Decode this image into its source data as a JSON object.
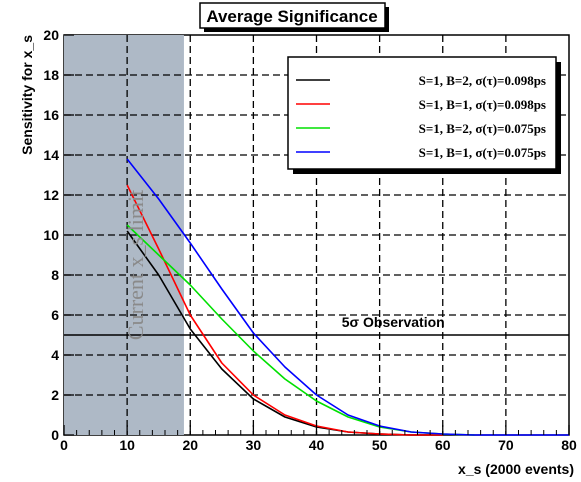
{
  "chart_data": {
    "type": "line",
    "title": "Average Significance",
    "xlabel": "x_s (2000 events)",
    "ylabel": "Sensitivity for x_s",
    "xlim": [
      0,
      80
    ],
    "ylim": [
      0,
      20
    ],
    "x_ticks": [
      "0",
      "10",
      "20",
      "30",
      "40",
      "50",
      "60",
      "70",
      "80"
    ],
    "y_ticks": [
      "0",
      "2",
      "4",
      "6",
      "8",
      "10",
      "12",
      "14",
      "16",
      "18",
      "20"
    ],
    "grid": true,
    "legend_position": "top-right",
    "shaded_region": {
      "label": "Current x_s limit",
      "x_range": [
        0,
        19
      ],
      "color": "#aeb9c6"
    },
    "reference_line": {
      "y": 5,
      "label": "5σ Observation"
    },
    "series": [
      {
        "name": "S=1, B=2, σ(τ)=0.098ps",
        "color": "#000000",
        "x": [
          10,
          15,
          20,
          25,
          30,
          35,
          40,
          45,
          50,
          55,
          60
        ],
        "y": [
          10.2,
          8.0,
          5.3,
          3.3,
          1.8,
          0.9,
          0.4,
          0.15,
          0.05,
          0.0,
          0.0
        ]
      },
      {
        "name": "S=1, B=1, σ(τ)=0.098ps",
        "color": "#ff0000",
        "x": [
          10,
          15,
          20,
          25,
          30,
          35,
          40,
          45,
          50,
          55,
          60
        ],
        "y": [
          12.5,
          9.3,
          6.0,
          3.6,
          2.0,
          1.0,
          0.45,
          0.15,
          0.05,
          0.0,
          0.0
        ]
      },
      {
        "name": "S=1, B=2, σ(τ)=0.075ps",
        "color": "#00e000",
        "x": [
          10,
          15,
          20,
          25,
          30,
          35,
          40,
          45,
          50,
          55,
          60,
          65
        ],
        "y": [
          10.5,
          9.0,
          7.5,
          5.8,
          4.2,
          2.8,
          1.7,
          0.9,
          0.4,
          0.15,
          0.05,
          0.0
        ]
      },
      {
        "name": "S=1, B=1, σ(τ)=0.075ps",
        "color": "#0000ff",
        "x": [
          10,
          15,
          20,
          25,
          30,
          35,
          40,
          45,
          50,
          55,
          60,
          65,
          70,
          80
        ],
        "y": [
          13.8,
          11.8,
          9.6,
          7.3,
          5.1,
          3.4,
          2.0,
          1.0,
          0.45,
          0.15,
          0.05,
          0.0,
          0.0,
          0.0
        ]
      }
    ]
  }
}
